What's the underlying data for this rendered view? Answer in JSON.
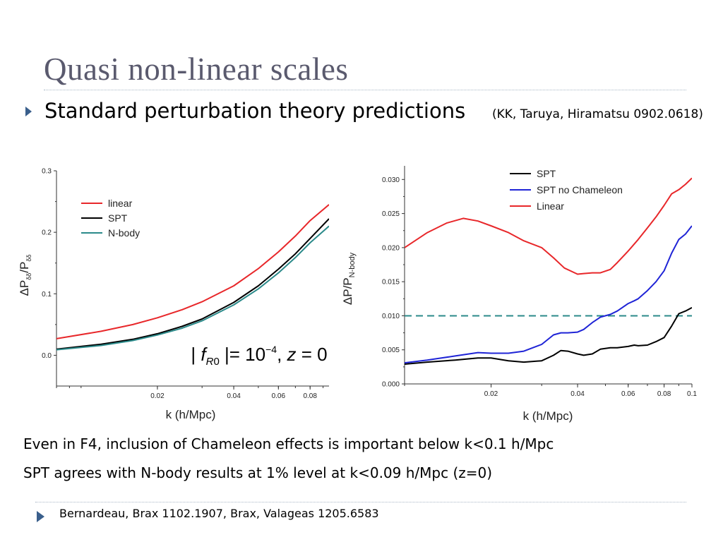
{
  "slide": {
    "title": "Quasi non-linear scales",
    "bullet": "Standard perturbation theory predictions",
    "bullet_ref": "(KK, Taruya, Hiramatsu 0902.0618)",
    "notes": [
      "Even in F4, inclusion of Chameleon effects is important below k<0.1 h/Mpc",
      "SPT agrees with N-body results at 1% level at k<0.09 h/Mpc (z=0)"
    ],
    "footer": "Bernardeau, Brax 1102.1907, Brax, Valageas 1205.6583",
    "accent_color": "#3a5f8c"
  },
  "chart_data": [
    {
      "type": "line",
      "xlabel": "k (h/Mpc)",
      "ylabel": "ΔPδδ/Pδδ",
      "x_scale": "log",
      "xlim": [
        0.008,
        0.095
      ],
      "ylim": [
        -0.05,
        0.3
      ],
      "x_ticks": [
        0.02,
        0.04,
        0.06,
        0.08
      ],
      "x_tick_labels": [
        "0.02",
        "0.04",
        "0.06",
        "0.08"
      ],
      "y_ticks": [
        0.0,
        0.1,
        0.2,
        0.3
      ],
      "y_tick_labels": [
        "0.0",
        "0.1",
        "0.2",
        "0.3"
      ],
      "legend_position": "top-left",
      "annotation": "|fR0| = 10^-4, z = 0",
      "series": [
        {
          "name": "linear",
          "color": "#e8272a",
          "x": [
            0.008,
            0.012,
            0.016,
            0.02,
            0.025,
            0.03,
            0.04,
            0.05,
            0.06,
            0.07,
            0.08,
            0.095
          ],
          "y": [
            0.027,
            0.039,
            0.05,
            0.061,
            0.074,
            0.087,
            0.113,
            0.141,
            0.168,
            0.194,
            0.219,
            0.245
          ]
        },
        {
          "name": "SPT",
          "color": "#000000",
          "x": [
            0.008,
            0.012,
            0.016,
            0.02,
            0.025,
            0.03,
            0.04,
            0.05,
            0.06,
            0.07,
            0.08,
            0.095
          ],
          "y": [
            0.01,
            0.018,
            0.026,
            0.035,
            0.047,
            0.059,
            0.086,
            0.113,
            0.14,
            0.165,
            0.19,
            0.222
          ]
        },
        {
          "name": "N-body",
          "color": "#2b8a8a",
          "x": [
            0.008,
            0.012,
            0.016,
            0.02,
            0.025,
            0.03,
            0.04,
            0.05,
            0.06,
            0.07,
            0.08,
            0.095
          ],
          "y": [
            0.009,
            0.016,
            0.024,
            0.033,
            0.044,
            0.056,
            0.082,
            0.108,
            0.134,
            0.159,
            0.183,
            0.21
          ]
        }
      ]
    },
    {
      "type": "line",
      "xlabel": "k (h/Mpc)",
      "ylabel": "ΔP/PN-body",
      "x_scale": "log",
      "xlim": [
        0.01,
        0.1
      ],
      "ylim": [
        0.0,
        0.032
      ],
      "x_ticks": [
        0.02,
        0.04,
        0.06,
        0.08,
        0.1
      ],
      "x_tick_labels": [
        "0.02",
        "0.04",
        "0.06",
        "0.08",
        "0.1"
      ],
      "y_ticks": [
        0.0,
        0.005,
        0.01,
        0.015,
        0.02,
        0.025,
        0.03
      ],
      "y_tick_labels": [
        "0.000",
        "0.005",
        "0.010",
        "0.015",
        "0.020",
        "0.025",
        "0.030"
      ],
      "legend_position": "top-right",
      "reference_line": {
        "y": 0.01,
        "color": "#2b8a8a",
        "style": "dashed"
      },
      "series": [
        {
          "name": "SPT",
          "color": "#000000",
          "x": [
            0.01,
            0.012,
            0.015,
            0.018,
            0.02,
            0.023,
            0.026,
            0.03,
            0.033,
            0.035,
            0.037,
            0.04,
            0.042,
            0.045,
            0.048,
            0.052,
            0.055,
            0.06,
            0.063,
            0.065,
            0.07,
            0.075,
            0.08,
            0.085,
            0.09,
            0.095,
            0.1
          ],
          "y": [
            0.0029,
            0.0032,
            0.0035,
            0.0038,
            0.0038,
            0.0034,
            0.0032,
            0.0034,
            0.0042,
            0.0049,
            0.0048,
            0.0044,
            0.0042,
            0.0044,
            0.0051,
            0.0053,
            0.0053,
            0.0055,
            0.0057,
            0.0056,
            0.0057,
            0.0062,
            0.0068,
            0.0085,
            0.0103,
            0.0107,
            0.0112
          ]
        },
        {
          "name": "SPT no Chameleon",
          "color": "#1f24d6",
          "x": [
            0.01,
            0.012,
            0.015,
            0.018,
            0.02,
            0.023,
            0.026,
            0.03,
            0.033,
            0.035,
            0.037,
            0.04,
            0.042,
            0.045,
            0.048,
            0.052,
            0.055,
            0.06,
            0.063,
            0.065,
            0.07,
            0.075,
            0.08,
            0.085,
            0.09,
            0.095,
            0.1
          ],
          "y": [
            0.0031,
            0.0035,
            0.0041,
            0.0046,
            0.0045,
            0.0045,
            0.0048,
            0.0058,
            0.0072,
            0.0075,
            0.0075,
            0.0076,
            0.008,
            0.009,
            0.0098,
            0.0102,
            0.0107,
            0.0118,
            0.0122,
            0.0125,
            0.0137,
            0.015,
            0.0166,
            0.0192,
            0.0212,
            0.022,
            0.0232
          ]
        },
        {
          "name": "Linear",
          "color": "#e8272a",
          "x": [
            0.01,
            0.012,
            0.014,
            0.016,
            0.018,
            0.02,
            0.023,
            0.026,
            0.03,
            0.033,
            0.036,
            0.04,
            0.042,
            0.045,
            0.048,
            0.052,
            0.055,
            0.06,
            0.065,
            0.07,
            0.075,
            0.08,
            0.085,
            0.09,
            0.095,
            0.1
          ],
          "y": [
            0.02,
            0.0222,
            0.0236,
            0.0243,
            0.0239,
            0.0232,
            0.0222,
            0.021,
            0.02,
            0.0185,
            0.017,
            0.0161,
            0.0162,
            0.0163,
            0.0163,
            0.0168,
            0.0178,
            0.0195,
            0.0212,
            0.0229,
            0.0245,
            0.0262,
            0.0279,
            0.0285,
            0.0293,
            0.0302
          ]
        }
      ]
    }
  ]
}
